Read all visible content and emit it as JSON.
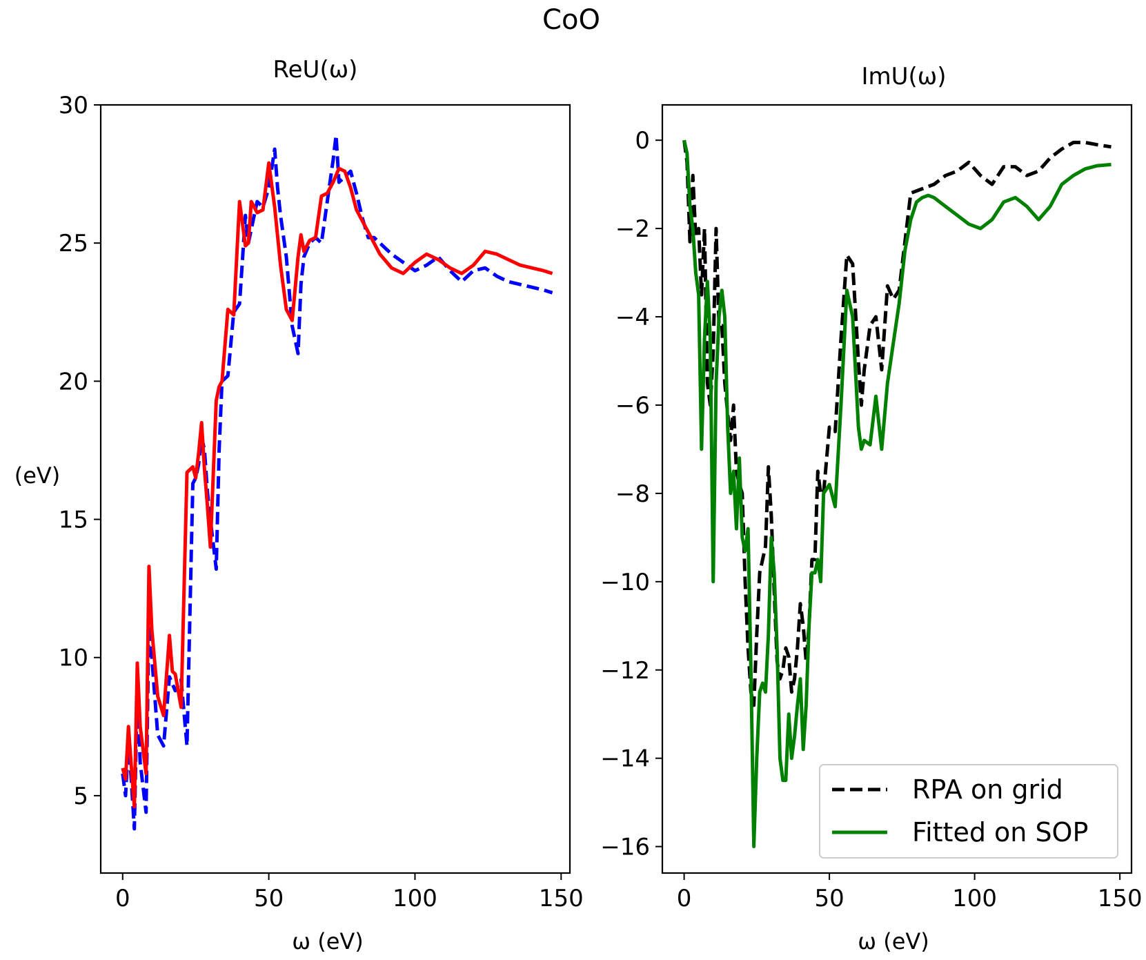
{
  "suptitle": "CoO",
  "chart_data": [
    {
      "type": "line",
      "title": "ReU(ω)",
      "xlabel": "ω (eV)",
      "ylabel": "(eV)",
      "xlim": [
        -7.5,
        153
      ],
      "ylim": [
        2.2,
        30
      ],
      "xticks": [
        0,
        50,
        100,
        150
      ],
      "yticks": [
        5,
        10,
        15,
        20,
        25,
        30
      ],
      "series": [
        {
          "color": "#0000ff",
          "dash": "dashed",
          "x": [
            0,
            1,
            2,
            3,
            4,
            5,
            6,
            8,
            9,
            10,
            12,
            14,
            16,
            18,
            20,
            22,
            24,
            25,
            26,
            27,
            28,
            29,
            30,
            32,
            33,
            34,
            36,
            38,
            40,
            42,
            43,
            44,
            46,
            48,
            50,
            52,
            53,
            54,
            56,
            58,
            60,
            61,
            62,
            64,
            66,
            68,
            70,
            72,
            73,
            74,
            76,
            78,
            80,
            82,
            84,
            86,
            88,
            92,
            96,
            100,
            104,
            108,
            112,
            116,
            120,
            124,
            128,
            132,
            136,
            140,
            144,
            147
          ],
          "y": [
            5.8,
            5.0,
            7.0,
            5.5,
            3.8,
            9.0,
            6.2,
            4.4,
            11.5,
            10.0,
            7.2,
            6.8,
            9.3,
            8.8,
            9.2,
            6.8,
            16.3,
            16.5,
            17.0,
            18.0,
            17.5,
            16.0,
            15.0,
            13.2,
            17.5,
            20.0,
            20.2,
            22.5,
            22.8,
            26.0,
            25.0,
            25.5,
            26.5,
            26.3,
            27.0,
            28.4,
            27.0,
            26.0,
            24.5,
            22.0,
            21.0,
            23.5,
            24.5,
            25.0,
            25.2,
            25.0,
            26.5,
            28.0,
            28.9,
            27.2,
            27.4,
            27.6,
            26.8,
            25.9,
            25.2,
            25.2,
            25.0,
            24.6,
            24.3,
            24.0,
            24.2,
            24.5,
            24.0,
            23.6,
            24.0,
            24.1,
            23.8,
            23.6,
            23.5,
            23.4,
            23.3,
            23.2
          ]
        },
        {
          "color": "#ff0000",
          "dash": "solid",
          "x": [
            0,
            1,
            2,
            3,
            4,
            5,
            6,
            8,
            9,
            10,
            12,
            14,
            16,
            17,
            18,
            20,
            22,
            24,
            25,
            26,
            27,
            28,
            29,
            30,
            32,
            33,
            34,
            36,
            38,
            40,
            42,
            43,
            44,
            46,
            48,
            50,
            52,
            54,
            56,
            58,
            60,
            61,
            62,
            64,
            66,
            68,
            70,
            72,
            74,
            76,
            78,
            80,
            84,
            88,
            92,
            96,
            100,
            104,
            108,
            112,
            116,
            120,
            124,
            128,
            132,
            136,
            140,
            144,
            147
          ],
          "y": [
            6.0,
            5.6,
            7.5,
            6.0,
            4.6,
            9.8,
            7.5,
            5.8,
            13.3,
            11.0,
            8.6,
            7.9,
            10.8,
            9.5,
            9.4,
            8.2,
            16.7,
            16.9,
            16.5,
            17.4,
            18.5,
            16.8,
            15.5,
            14.0,
            19.3,
            19.8,
            20.0,
            22.6,
            22.4,
            26.5,
            24.9,
            25.0,
            26.5,
            26.1,
            26.2,
            27.9,
            26.3,
            24.2,
            22.6,
            22.2,
            24.5,
            25.3,
            24.7,
            25.1,
            25.2,
            26.7,
            26.8,
            27.2,
            27.7,
            27.6,
            27.0,
            26.2,
            25.4,
            24.6,
            24.1,
            23.9,
            24.3,
            24.6,
            24.4,
            24.1,
            23.9,
            24.2,
            24.7,
            24.6,
            24.4,
            24.2,
            24.1,
            24.0,
            23.9
          ]
        }
      ]
    },
    {
      "type": "line",
      "title": "ImU(ω)",
      "xlabel": "ω (eV)",
      "ylabel": "",
      "xlim": [
        -7.5,
        154
      ],
      "ylim": [
        -16.6,
        0.8
      ],
      "xticks": [
        0,
        50,
        100,
        150
      ],
      "yticks": [
        0,
        -2,
        -4,
        -6,
        -8,
        -10,
        -12,
        -14,
        -16
      ],
      "legend": "lower right",
      "series": [
        {
          "name": "RPA on grid",
          "color": "#000000",
          "dash": "dashed",
          "x": [
            0,
            1,
            2,
            3,
            4,
            5,
            6,
            7,
            8,
            9,
            10,
            11,
            12,
            13,
            14,
            15,
            16,
            17,
            18,
            19,
            20,
            21,
            22,
            23,
            24,
            25,
            26,
            27,
            28,
            29,
            30,
            31,
            32,
            33,
            34,
            35,
            36,
            37,
            38,
            39,
            40,
            41,
            42,
            43,
            44,
            45,
            46,
            47,
            48,
            50,
            52,
            54,
            56,
            58,
            60,
            61,
            62,
            64,
            66,
            68,
            70,
            72,
            74,
            78,
            82,
            86,
            90,
            94,
            98,
            102,
            106,
            110,
            114,
            118,
            122,
            126,
            130,
            134,
            138,
            142,
            147
          ],
          "y": [
            0.0,
            -0.5,
            -2.3,
            -0.8,
            -2.2,
            -2.0,
            -3.5,
            -2.0,
            -5.5,
            -6.0,
            -4.8,
            -2.0,
            -4.2,
            -4.2,
            -5.5,
            -6.2,
            -6.8,
            -6.0,
            -7.5,
            -7.8,
            -8.0,
            -10.0,
            -11.5,
            -12.5,
            -12.8,
            -11.2,
            -9.8,
            -9.5,
            -9.2,
            -7.4,
            -8.5,
            -10.2,
            -11.8,
            -12.2,
            -12.0,
            -11.5,
            -11.7,
            -12.5,
            -12.2,
            -11.5,
            -10.5,
            -11.0,
            -11.8,
            -11.0,
            -9.5,
            -9.5,
            -7.5,
            -8.0,
            -8.0,
            -6.5,
            -6.6,
            -4.5,
            -2.6,
            -2.8,
            -5.0,
            -6.0,
            -5.2,
            -4.2,
            -4.0,
            -5.2,
            -3.3,
            -3.6,
            -3.4,
            -1.2,
            -1.1,
            -1.0,
            -0.8,
            -0.7,
            -0.5,
            -0.8,
            -1.0,
            -0.6,
            -0.6,
            -0.8,
            -0.7,
            -0.4,
            -0.2,
            -0.05,
            -0.05,
            -0.1,
            -0.15
          ]
        },
        {
          "name": "Fitted on SOP",
          "color": "#008000",
          "dash": "solid",
          "x": [
            0,
            1,
            2,
            3,
            4,
            5,
            6,
            7,
            8,
            9,
            10,
            11,
            12,
            13,
            14,
            15,
            16,
            17,
            18,
            19,
            20,
            21,
            22,
            23,
            24,
            25,
            26,
            27,
            28,
            29,
            30,
            31,
            32,
            33,
            34,
            35,
            36,
            37,
            38,
            39,
            40,
            41,
            42,
            43,
            44,
            45,
            46,
            47,
            48,
            50,
            52,
            54,
            56,
            58,
            60,
            61,
            62,
            64,
            66,
            68,
            70,
            72,
            74,
            76,
            78,
            80,
            82,
            84,
            86,
            88,
            90,
            92,
            94,
            96,
            98,
            102,
            106,
            110,
            114,
            118,
            122,
            126,
            130,
            134,
            138,
            142,
            147
          ],
          "y": [
            0.0,
            -0.3,
            -1.5,
            -2.0,
            -3.0,
            -3.5,
            -7.0,
            -4.5,
            -3.2,
            -4.5,
            -10.0,
            -5.5,
            -4.0,
            -3.4,
            -4.0,
            -6.5,
            -8.0,
            -7.5,
            -8.8,
            -7.2,
            -9.0,
            -9.3,
            -8.8,
            -12.0,
            -16.0,
            -14.0,
            -12.5,
            -12.3,
            -12.5,
            -11.2,
            -9.0,
            -9.8,
            -11.5,
            -14.0,
            -14.5,
            -14.5,
            -13.0,
            -14.0,
            -13.5,
            -12.8,
            -12.2,
            -13.8,
            -12.8,
            -11.0,
            -9.8,
            -9.8,
            -9.5,
            -10.0,
            -8.0,
            -7.8,
            -8.3,
            -6.0,
            -3.4,
            -4.0,
            -6.5,
            -7.0,
            -6.8,
            -6.9,
            -5.8,
            -7.0,
            -5.5,
            -4.6,
            -3.7,
            -2.5,
            -1.8,
            -1.4,
            -1.3,
            -1.25,
            -1.3,
            -1.4,
            -1.5,
            -1.6,
            -1.7,
            -1.8,
            -1.9,
            -2.0,
            -1.8,
            -1.4,
            -1.3,
            -1.5,
            -1.8,
            -1.5,
            -1.0,
            -0.8,
            -0.65,
            -0.58,
            -0.55
          ]
        }
      ]
    }
  ]
}
